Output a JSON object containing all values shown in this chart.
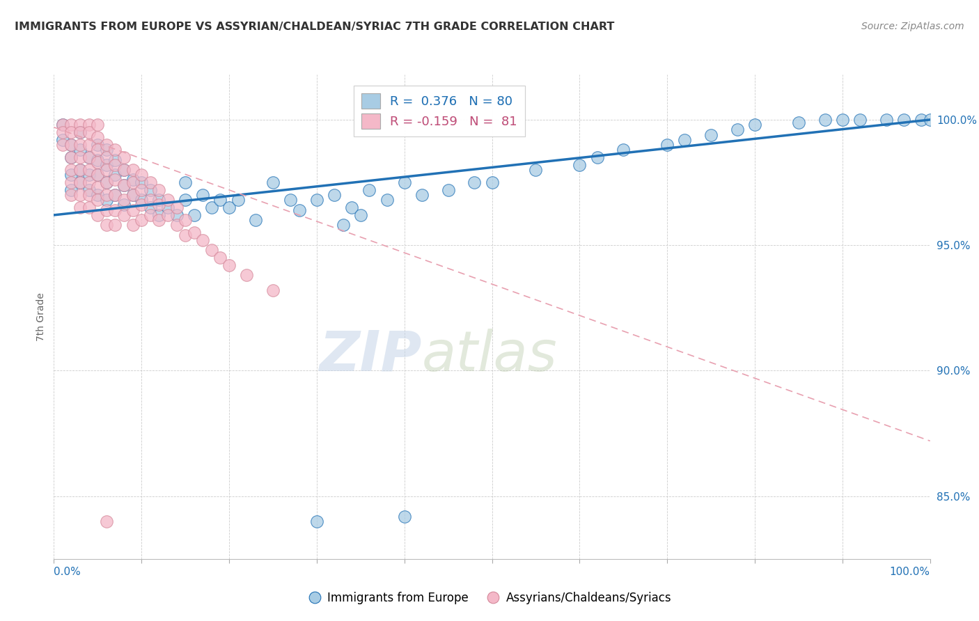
{
  "title": "IMMIGRANTS FROM EUROPE VS ASSYRIAN/CHALDEAN/SYRIAC 7TH GRADE CORRELATION CHART",
  "source": "Source: ZipAtlas.com",
  "ylabel": "7th Grade",
  "y_tick_values": [
    0.85,
    0.9,
    0.95,
    1.0
  ],
  "xlim": [
    0.0,
    1.0
  ],
  "ylim": [
    0.825,
    1.018
  ],
  "blue_color": "#a8cce4",
  "pink_color": "#f4b8c8",
  "blue_R": 0.376,
  "blue_N": 80,
  "pink_R": -0.159,
  "pink_N": 81,
  "blue_line_color": "#2171b5",
  "pink_line_color": "#e8a0b0",
  "watermark_zip": "ZIP",
  "watermark_atlas": "atlas",
  "legend_label_blue": "Immigrants from Europe",
  "legend_label_pink": "Assyrians/Chaldeans/Syriacs",
  "blue_scatter_x": [
    0.01,
    0.01,
    0.02,
    0.02,
    0.02,
    0.02,
    0.03,
    0.03,
    0.03,
    0.03,
    0.04,
    0.04,
    0.04,
    0.05,
    0.05,
    0.05,
    0.05,
    0.06,
    0.06,
    0.06,
    0.06,
    0.07,
    0.07,
    0.07,
    0.08,
    0.08,
    0.08,
    0.09,
    0.09,
    0.1,
    0.1,
    0.11,
    0.11,
    0.12,
    0.12,
    0.13,
    0.14,
    0.15,
    0.15,
    0.16,
    0.17,
    0.18,
    0.19,
    0.2,
    0.21,
    0.23,
    0.25,
    0.27,
    0.28,
    0.3,
    0.32,
    0.34,
    0.36,
    0.38,
    0.4,
    0.42,
    0.45,
    0.48,
    0.33,
    0.35,
    0.5,
    0.55,
    0.6,
    0.62,
    0.65,
    0.7,
    0.72,
    0.75,
    0.78,
    0.8,
    0.85,
    0.88,
    0.9,
    0.92,
    0.95,
    0.97,
    0.99,
    1.0,
    0.3,
    0.4
  ],
  "blue_scatter_y": [
    0.998,
    0.992,
    0.99,
    0.985,
    0.978,
    0.972,
    0.995,
    0.988,
    0.98,
    0.975,
    0.985,
    0.978,
    0.972,
    0.99,
    0.984,
    0.978,
    0.97,
    0.988,
    0.982,
    0.975,
    0.968,
    0.984,
    0.978,
    0.97,
    0.98,
    0.974,
    0.966,
    0.976,
    0.97,
    0.975,
    0.968,
    0.972,
    0.965,
    0.968,
    0.962,
    0.965,
    0.962,
    0.968,
    0.975,
    0.962,
    0.97,
    0.965,
    0.968,
    0.965,
    0.968,
    0.96,
    0.975,
    0.968,
    0.964,
    0.968,
    0.97,
    0.965,
    0.972,
    0.968,
    0.975,
    0.97,
    0.972,
    0.975,
    0.958,
    0.962,
    0.975,
    0.98,
    0.982,
    0.985,
    0.988,
    0.99,
    0.992,
    0.994,
    0.996,
    0.998,
    0.999,
    1.0,
    1.0,
    1.0,
    1.0,
    1.0,
    1.0,
    1.0,
    0.84,
    0.842
  ],
  "pink_scatter_x": [
    0.01,
    0.01,
    0.01,
    0.02,
    0.02,
    0.02,
    0.02,
    0.02,
    0.02,
    0.02,
    0.03,
    0.03,
    0.03,
    0.03,
    0.03,
    0.03,
    0.03,
    0.03,
    0.04,
    0.04,
    0.04,
    0.04,
    0.04,
    0.04,
    0.04,
    0.04,
    0.05,
    0.05,
    0.05,
    0.05,
    0.05,
    0.05,
    0.05,
    0.05,
    0.06,
    0.06,
    0.06,
    0.06,
    0.06,
    0.06,
    0.06,
    0.07,
    0.07,
    0.07,
    0.07,
    0.07,
    0.07,
    0.08,
    0.08,
    0.08,
    0.08,
    0.08,
    0.09,
    0.09,
    0.09,
    0.09,
    0.09,
    0.1,
    0.1,
    0.1,
    0.1,
    0.11,
    0.11,
    0.11,
    0.12,
    0.12,
    0.12,
    0.13,
    0.13,
    0.14,
    0.14,
    0.15,
    0.15,
    0.16,
    0.17,
    0.18,
    0.19,
    0.2,
    0.22,
    0.25,
    0.06
  ],
  "pink_scatter_y": [
    0.998,
    0.995,
    0.99,
    0.998,
    0.995,
    0.99,
    0.985,
    0.98,
    0.975,
    0.97,
    0.998,
    0.995,
    0.99,
    0.985,
    0.98,
    0.975,
    0.97,
    0.965,
    0.998,
    0.995,
    0.99,
    0.985,
    0.98,
    0.975,
    0.97,
    0.965,
    0.998,
    0.993,
    0.988,
    0.983,
    0.978,
    0.973,
    0.968,
    0.962,
    0.99,
    0.985,
    0.98,
    0.975,
    0.97,
    0.964,
    0.958,
    0.988,
    0.982,
    0.976,
    0.97,
    0.964,
    0.958,
    0.985,
    0.98,
    0.974,
    0.968,
    0.962,
    0.98,
    0.975,
    0.97,
    0.964,
    0.958,
    0.978,
    0.972,
    0.966,
    0.96,
    0.975,
    0.968,
    0.962,
    0.972,
    0.966,
    0.96,
    0.968,
    0.962,
    0.965,
    0.958,
    0.96,
    0.954,
    0.955,
    0.952,
    0.948,
    0.945,
    0.942,
    0.938,
    0.932,
    0.84
  ]
}
